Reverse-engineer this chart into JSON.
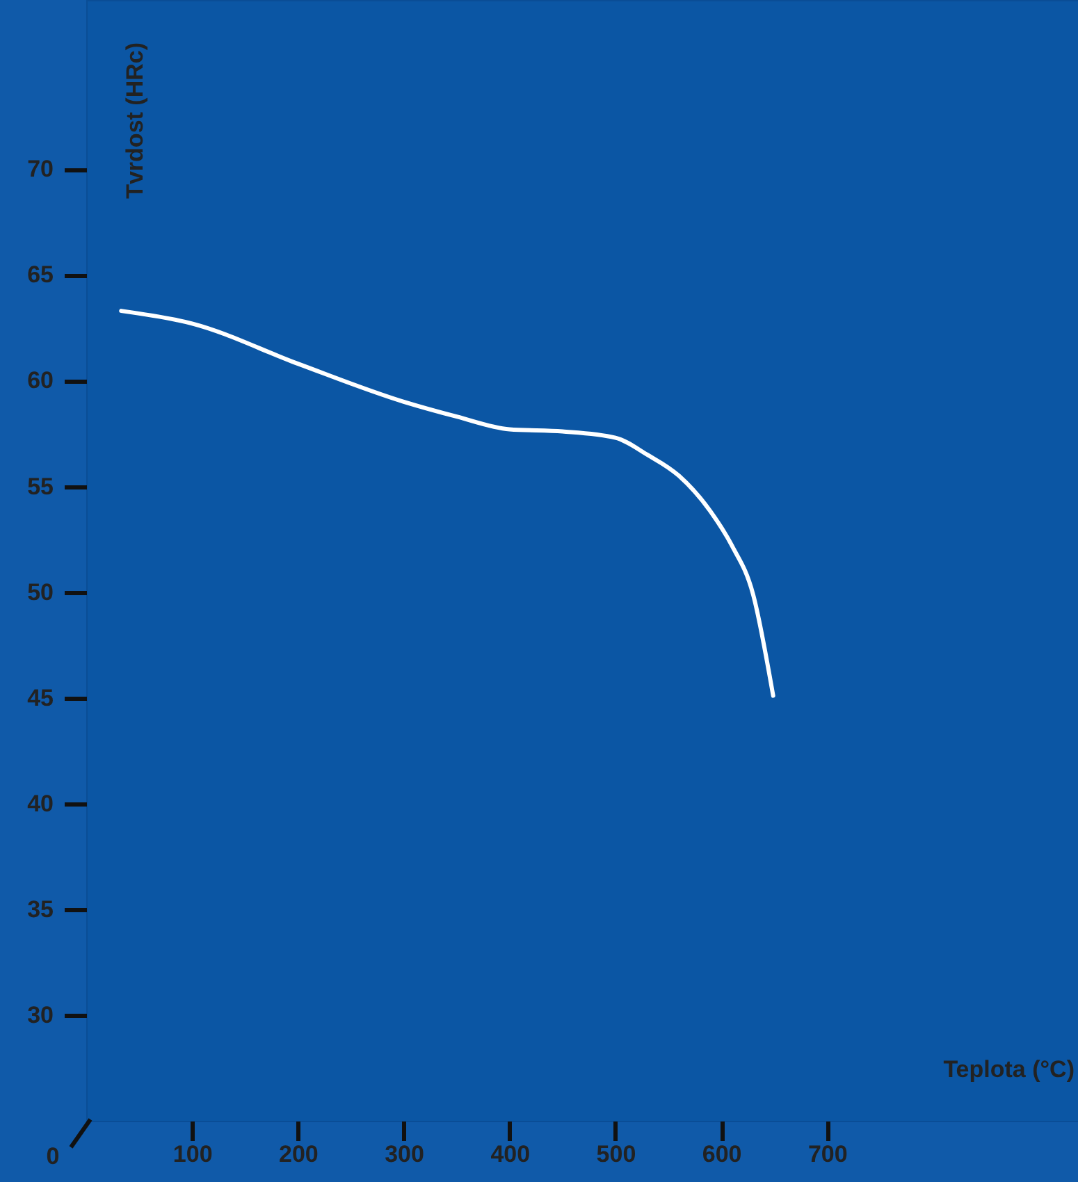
{
  "chart_data": {
    "type": "line",
    "xlabel": "Teplota (°C)",
    "ylabel": "Tvrdost (HRc)",
    "x": [
      33,
      100,
      200,
      300,
      350,
      400,
      450,
      500,
      530,
      560,
      590,
      610,
      630,
      649
    ],
    "series": [
      {
        "color": "#ffffff",
        "values": [
          63.3,
          62.7,
          60.8,
          59.0,
          58.3,
          57.7,
          57.6,
          57.3,
          56.5,
          55.5,
          53.8,
          52.2,
          49.9,
          45.1
        ]
      }
    ],
    "xlim": [
      0,
      937
    ],
    "xticks": [
      100,
      200,
      300,
      400,
      500,
      600,
      700
    ],
    "ylim": [
      25,
      78
    ],
    "yticks": [
      30,
      35,
      40,
      45,
      50,
      55,
      60,
      65,
      70
    ],
    "annotations": [
      "0"
    ],
    "marker": "none",
    "line_style": "solid"
  }
}
